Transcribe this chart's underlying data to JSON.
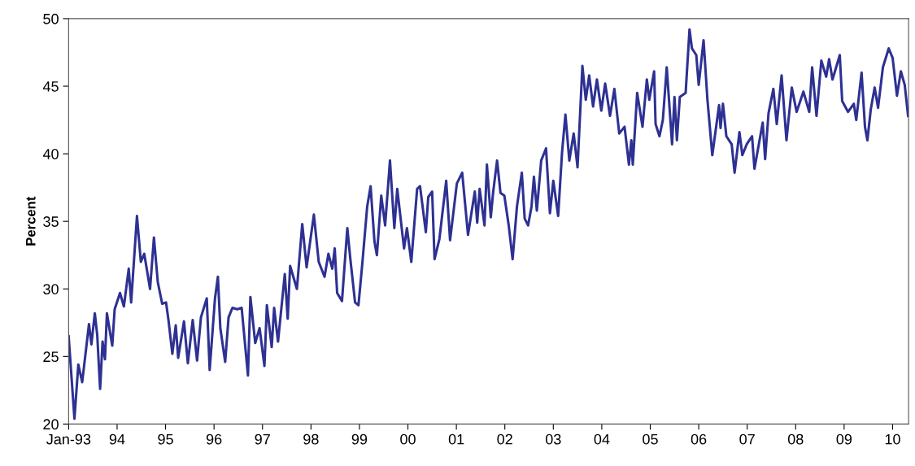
{
  "chart_data": {
    "type": "line",
    "ylabel": "Percent",
    "xlim": [
      1993,
      2010.33
    ],
    "ylim": [
      20,
      50
    ],
    "yticks": [
      20,
      25,
      30,
      35,
      40,
      45,
      50
    ],
    "xticks": [
      {
        "value": 1993,
        "label": "Jan-93"
      },
      {
        "value": 1994,
        "label": "94"
      },
      {
        "value": 1995,
        "label": "95"
      },
      {
        "value": 1996,
        "label": "96"
      },
      {
        "value": 1997,
        "label": "97"
      },
      {
        "value": 1998,
        "label": "98"
      },
      {
        "value": 1999,
        "label": "99"
      },
      {
        "value": 2000,
        "label": "00"
      },
      {
        "value": 2001,
        "label": "01"
      },
      {
        "value": 2002,
        "label": "02"
      },
      {
        "value": 2003,
        "label": "03"
      },
      {
        "value": 2004,
        "label": "04"
      },
      {
        "value": 2005,
        "label": "05"
      },
      {
        "value": 2006,
        "label": "06"
      },
      {
        "value": 2007,
        "label": "07"
      },
      {
        "value": 2008,
        "label": "08"
      },
      {
        "value": 2009,
        "label": "09"
      },
      {
        "value": 2010,
        "label": "10"
      }
    ],
    "grid": false,
    "legend": false,
    "marker": "none",
    "line_style": "solid",
    "series": [
      {
        "color": "#2e3192",
        "x": [
          1993.0,
          1993.12,
          1993.2,
          1993.28,
          1993.42,
          1993.47,
          1993.54,
          1993.59,
          1993.65,
          1993.7,
          1993.75,
          1993.79,
          1993.9,
          1993.95,
          1994.06,
          1994.14,
          1994.24,
          1994.29,
          1994.41,
          1994.49,
          1994.56,
          1994.68,
          1994.76,
          1994.84,
          1994.93,
          1995.01,
          1995.06,
          1995.14,
          1995.21,
          1995.26,
          1995.38,
          1995.46,
          1995.56,
          1995.65,
          1995.73,
          1995.85,
          1995.91,
          1996.02,
          1996.08,
          1996.13,
          1996.23,
          1996.3,
          1996.38,
          1996.48,
          1996.57,
          1996.7,
          1996.75,
          1996.85,
          1996.94,
          1997.04,
          1997.09,
          1997.19,
          1997.24,
          1997.32,
          1997.46,
          1997.52,
          1997.57,
          1997.71,
          1997.82,
          1997.91,
          1998.06,
          1998.16,
          1998.28,
          1998.36,
          1998.44,
          1998.49,
          1998.54,
          1998.64,
          1998.75,
          1998.81,
          1998.91,
          1998.98,
          1999.06,
          1999.16,
          1999.23,
          1999.31,
          1999.36,
          1999.45,
          1999.53,
          1999.63,
          1999.72,
          1999.78,
          1999.92,
          1999.98,
          2000.07,
          2000.19,
          2000.25,
          2000.37,
          2000.42,
          2000.5,
          2000.55,
          2000.65,
          2000.79,
          2000.87,
          2001.01,
          2001.12,
          2001.24,
          2001.38,
          2001.43,
          2001.48,
          2001.58,
          2001.63,
          2001.71,
          2001.76,
          2001.84,
          2001.91,
          2001.99,
          2002.08,
          2002.16,
          2002.25,
          2002.35,
          2002.41,
          2002.48,
          2002.55,
          2002.6,
          2002.66,
          2002.75,
          2002.85,
          2002.93,
          2003.0,
          2003.1,
          2003.18,
          2003.25,
          2003.33,
          2003.42,
          2003.5,
          2003.6,
          2003.67,
          2003.74,
          2003.82,
          2003.9,
          2003.99,
          2004.07,
          2004.17,
          2004.26,
          2004.36,
          2004.47,
          2004.56,
          2004.61,
          2004.64,
          2004.73,
          2004.84,
          2004.93,
          2004.98,
          2005.08,
          2005.11,
          2005.19,
          2005.26,
          2005.34,
          2005.45,
          2005.5,
          2005.55,
          2005.61,
          2005.73,
          2005.81,
          2005.86,
          2005.95,
          2006.0,
          2006.1,
          2006.18,
          2006.28,
          2006.42,
          2006.45,
          2006.5,
          2006.57,
          2006.68,
          2006.74,
          2006.84,
          2006.9,
          2006.99,
          2007.1,
          2007.15,
          2007.24,
          2007.32,
          2007.37,
          2007.44,
          2007.54,
          2007.61,
          2007.71,
          2007.81,
          2007.92,
          2008.02,
          2008.16,
          2008.28,
          2008.34,
          2008.43,
          2008.53,
          2008.63,
          2008.69,
          2008.76,
          2008.91,
          2008.96,
          2009.08,
          2009.2,
          2009.25,
          2009.36,
          2009.43,
          2009.48,
          2009.55,
          2009.63,
          2009.7,
          2009.8,
          2009.92,
          2010.0,
          2010.09,
          2010.17,
          2010.25,
          2010.32
        ],
        "values": [
          26.5,
          20.4,
          24.4,
          23.1,
          27.4,
          25.9,
          28.2,
          26.6,
          22.6,
          26.1,
          24.8,
          28.2,
          25.8,
          28.5,
          29.7,
          28.7,
          31.5,
          29.0,
          35.4,
          32.0,
          32.6,
          30.0,
          33.8,
          30.5,
          28.9,
          29.0,
          27.7,
          25.2,
          27.3,
          24.9,
          27.6,
          24.5,
          27.7,
          24.7,
          27.9,
          29.3,
          24.0,
          29.3,
          30.9,
          27.1,
          24.6,
          27.9,
          28.6,
          28.5,
          28.6,
          23.6,
          29.4,
          26.0,
          27.1,
          24.3,
          28.8,
          25.7,
          28.6,
          26.1,
          31.1,
          27.8,
          31.7,
          30.0,
          34.8,
          31.6,
          35.5,
          32.0,
          30.9,
          32.6,
          31.5,
          33.0,
          29.7,
          29.1,
          34.5,
          32.3,
          29.0,
          28.8,
          31.9,
          36.1,
          37.6,
          33.5,
          32.5,
          36.9,
          34.7,
          39.5,
          34.5,
          37.4,
          33.0,
          34.5,
          32.0,
          37.4,
          37.6,
          34.2,
          36.8,
          37.2,
          32.2,
          33.7,
          38.0,
          33.6,
          37.8,
          38.6,
          34.0,
          37.2,
          34.9,
          37.4,
          34.7,
          39.2,
          35.3,
          37.2,
          39.5,
          37.1,
          36.9,
          34.7,
          32.2,
          36.1,
          38.6,
          35.2,
          34.7,
          36.1,
          38.3,
          35.8,
          39.5,
          40.4,
          35.6,
          38.0,
          35.4,
          40.1,
          42.9,
          39.5,
          41.5,
          39.0,
          46.5,
          44.0,
          45.8,
          43.5,
          45.5,
          43.2,
          45.2,
          42.8,
          44.8,
          41.5,
          42.0,
          39.2,
          41.0,
          39.2,
          44.5,
          42.0,
          45.5,
          44.0,
          46.1,
          42.2,
          41.3,
          42.5,
          46.4,
          40.7,
          44.2,
          41.0,
          44.2,
          44.5,
          49.2,
          47.8,
          47.3,
          45.1,
          48.4,
          44.0,
          39.9,
          43.6,
          41.9,
          43.7,
          41.3,
          40.7,
          38.6,
          41.6,
          39.9,
          40.7,
          41.3,
          38.9,
          40.7,
          42.3,
          39.6,
          43.0,
          44.8,
          42.2,
          45.8,
          41.0,
          44.9,
          43.1,
          44.6,
          43.1,
          46.4,
          42.8,
          46.9,
          45.7,
          47.0,
          45.5,
          47.3,
          43.9,
          43.1,
          43.7,
          42.5,
          46.0,
          42.0,
          41.0,
          43.3,
          44.9,
          43.4,
          46.4,
          47.8,
          47.1,
          44.3,
          46.1,
          45.1,
          42.8
        ]
      }
    ]
  }
}
